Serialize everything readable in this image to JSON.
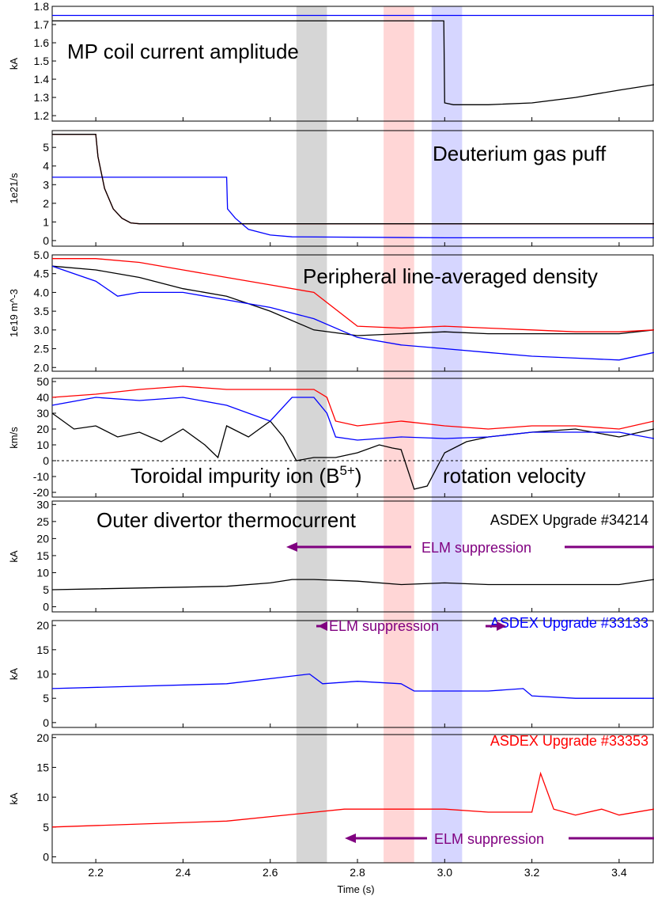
{
  "chart_data": [
    {
      "type": "line",
      "title": "MP coil current amplitude",
      "ylabel": "kA",
      "xlim": [
        2.1,
        3.48
      ],
      "ylim": [
        1.17,
        1.8
      ],
      "yticks": [
        1.2,
        1.3,
        1.4,
        1.5,
        1.6,
        1.7,
        1.8
      ],
      "series": [
        {
          "color": "#0000ff",
          "x": [
            2.1,
            2.3,
            2.5,
            2.7,
            2.9,
            3.1,
            3.3,
            3.48
          ],
          "y": [
            1.75,
            1.75,
            1.75,
            1.75,
            1.75,
            1.75,
            1.75,
            1.75
          ]
        },
        {
          "color": "#000000",
          "x": [
            2.1,
            2.5,
            2.9,
            2.995,
            2.998,
            3.0,
            3.02,
            3.1,
            3.2,
            3.3,
            3.4,
            3.48
          ],
          "y": [
            1.72,
            1.72,
            1.72,
            1.72,
            1.72,
            1.27,
            1.26,
            1.26,
            1.27,
            1.3,
            1.34,
            1.37
          ]
        }
      ]
    },
    {
      "type": "line",
      "title": "Deuterium gas puff",
      "ylabel": "1e21/s",
      "xlim": [
        2.1,
        3.48
      ],
      "ylim": [
        -0.3,
        5.9
      ],
      "yticks": [
        0,
        1,
        2,
        3,
        4,
        5
      ],
      "series": [
        {
          "color": "#0000ff",
          "x": [
            2.1,
            2.5,
            2.502,
            2.52,
            2.55,
            2.6,
            2.65,
            3.0,
            3.48
          ],
          "y": [
            3.4,
            3.4,
            1.7,
            1.2,
            0.6,
            0.3,
            0.2,
            0.15,
            0.15
          ]
        },
        {
          "color": "#ff0000",
          "x": [
            2.1,
            2.2,
            2.205,
            2.22,
            2.24,
            2.26,
            2.28,
            2.3,
            2.5,
            3.0,
            3.48
          ],
          "y": [
            5.7,
            5.7,
            4.5,
            2.8,
            1.7,
            1.2,
            0.95,
            0.9,
            0.9,
            0.9,
            0.9
          ]
        },
        {
          "color": "#000000",
          "x": [
            2.1,
            2.2,
            2.205,
            2.22,
            2.24,
            2.26,
            2.28,
            2.3,
            3.48
          ],
          "y": [
            5.7,
            5.7,
            4.5,
            2.8,
            1.7,
            1.2,
            0.95,
            0.9,
            0.9
          ]
        }
      ]
    },
    {
      "type": "line",
      "title": "Peripheral line-averaged density",
      "ylabel": "1e19 m^-3",
      "xlim": [
        2.1,
        3.48
      ],
      "ylim": [
        1.9,
        5.0
      ],
      "yticks": [
        2.0,
        2.5,
        3.0,
        3.5,
        4.0,
        4.5,
        5.0
      ],
      "series": [
        {
          "color": "#000000",
          "x": [
            2.1,
            2.2,
            2.3,
            2.4,
            2.5,
            2.6,
            2.7,
            2.8,
            2.9,
            3.0,
            3.1,
            3.2,
            3.3,
            3.4,
            3.48
          ],
          "y": [
            4.7,
            4.6,
            4.4,
            4.1,
            3.9,
            3.5,
            3.0,
            2.85,
            2.9,
            2.95,
            2.9,
            2.9,
            2.9,
            2.9,
            3.0
          ]
        },
        {
          "color": "#0000ff",
          "x": [
            2.1,
            2.2,
            2.25,
            2.3,
            2.4,
            2.5,
            2.6,
            2.7,
            2.8,
            2.9,
            3.0,
            3.1,
            3.2,
            3.3,
            3.4,
            3.48
          ],
          "y": [
            4.7,
            4.3,
            3.9,
            4.0,
            4.0,
            3.8,
            3.6,
            3.3,
            2.8,
            2.6,
            2.5,
            2.4,
            2.3,
            2.25,
            2.2,
            2.4
          ]
        },
        {
          "color": "#ff0000",
          "x": [
            2.1,
            2.2,
            2.3,
            2.4,
            2.5,
            2.6,
            2.7,
            2.8,
            2.9,
            3.0,
            3.1,
            3.2,
            3.3,
            3.4,
            3.48
          ],
          "y": [
            4.9,
            4.9,
            4.8,
            4.6,
            4.4,
            4.2,
            4.0,
            3.1,
            3.05,
            3.1,
            3.05,
            3.0,
            2.95,
            2.95,
            3.0
          ]
        }
      ]
    },
    {
      "type": "line",
      "title": "Toroidal impurity ion (B5+) rotation velocity",
      "ylabel": "km/s",
      "xlim": [
        2.1,
        3.48
      ],
      "ylim": [
        -23,
        52
      ],
      "yticks": [
        -20,
        -10,
        0,
        10,
        20,
        30,
        40,
        50
      ],
      "hline": 0,
      "series": [
        {
          "color": "#000000",
          "x": [
            2.1,
            2.15,
            2.2,
            2.25,
            2.3,
            2.35,
            2.4,
            2.45,
            2.48,
            2.5,
            2.55,
            2.6,
            2.63,
            2.66,
            2.7,
            2.75,
            2.8,
            2.85,
            2.88,
            2.9,
            2.93,
            2.96,
            3.0,
            3.05,
            3.1,
            3.2,
            3.3,
            3.4,
            3.48
          ],
          "y": [
            30,
            20,
            22,
            15,
            18,
            12,
            20,
            10,
            2,
            22,
            15,
            25,
            15,
            0,
            2,
            2,
            5,
            10,
            8,
            7,
            -18,
            -16,
            5,
            12,
            15,
            18,
            20,
            15,
            20
          ]
        },
        {
          "color": "#0000ff",
          "x": [
            2.1,
            2.2,
            2.3,
            2.4,
            2.5,
            2.6,
            2.65,
            2.7,
            2.73,
            2.75,
            2.8,
            2.9,
            3.0,
            3.1,
            3.2,
            3.3,
            3.4,
            3.48
          ],
          "y": [
            35,
            40,
            38,
            40,
            35,
            25,
            40,
            40,
            30,
            15,
            13,
            15,
            14,
            15,
            18,
            18,
            18,
            14
          ]
        },
        {
          "color": "#ff0000",
          "x": [
            2.1,
            2.2,
            2.3,
            2.4,
            2.5,
            2.6,
            2.7,
            2.73,
            2.75,
            2.8,
            2.9,
            3.0,
            3.1,
            3.2,
            3.3,
            3.4,
            3.48
          ],
          "y": [
            40,
            42,
            45,
            47,
            45,
            45,
            45,
            40,
            25,
            22,
            25,
            22,
            20,
            22,
            22,
            20,
            25
          ]
        }
      ]
    },
    {
      "type": "line",
      "title": "Outer divertor thermocurrent",
      "label": "ASDEX Upgrade #34214",
      "ylabel": "kA",
      "xlim": [
        2.1,
        3.48
      ],
      "ylim": [
        -1.5,
        31
      ],
      "yticks": [
        0,
        5,
        10,
        15,
        20,
        25,
        30
      ],
      "series": [
        {
          "color": "#000000",
          "x": [
            2.1,
            2.5,
            2.6,
            2.65,
            2.7,
            2.8,
            2.9,
            3.0,
            3.1,
            3.2,
            3.3,
            3.4,
            3.48
          ],
          "y": [
            5,
            6,
            7,
            8,
            8,
            7.5,
            6.5,
            7,
            6.5,
            6.5,
            6.5,
            6.5,
            8
          ]
        }
      ],
      "annotation": "ELM suppression"
    },
    {
      "type": "line",
      "label": "ASDEX Upgrade #33133",
      "ylabel": "kA",
      "xlim": [
        2.1,
        3.48
      ],
      "ylim": [
        -1,
        21
      ],
      "yticks": [
        0,
        5,
        10,
        15,
        20
      ],
      "series": [
        {
          "color": "#0000ff",
          "x": [
            2.1,
            2.5,
            2.69,
            2.72,
            2.8,
            2.9,
            2.93,
            3.0,
            3.1,
            3.18,
            3.2,
            3.3,
            3.4,
            3.48
          ],
          "y": [
            7,
            8,
            10,
            8,
            8.5,
            8,
            6.5,
            6.5,
            6.5,
            7,
            5.5,
            5,
            5,
            5
          ]
        }
      ],
      "annotation": "ELM suppression"
    },
    {
      "type": "line",
      "label": "ASDEX Upgrade #33353",
      "ylabel": "kA",
      "xlim": [
        2.1,
        3.48
      ],
      "ylim": [
        -1,
        20.5
      ],
      "yticks": [
        0,
        5,
        10,
        15,
        20
      ],
      "xticks": [
        2.2,
        2.4,
        2.6,
        2.8,
        3.0,
        3.2,
        3.4
      ],
      "xlabel": "Time (s)",
      "series": [
        {
          "color": "#ff0000",
          "x": [
            2.1,
            2.5,
            2.77,
            2.8,
            2.9,
            3.0,
            3.1,
            3.2,
            3.22,
            3.25,
            3.3,
            3.36,
            3.4,
            3.48
          ],
          "y": [
            5,
            6,
            8,
            8,
            8,
            8,
            7.5,
            7.5,
            14,
            8,
            7,
            8,
            7,
            8
          ]
        }
      ],
      "annotation": "ELM suppression"
    }
  ],
  "bands": [
    {
      "x0": 2.66,
      "x1": 2.73,
      "color": "#c8c8c8"
    },
    {
      "x0": 2.86,
      "x1": 2.93,
      "color": "#ffc8c8"
    },
    {
      "x0": 2.97,
      "x1": 3.04,
      "color": "#c8c8ff"
    }
  ],
  "colors": {
    "black": "#000000",
    "blue": "#0000ff",
    "red": "#ff0000",
    "purple": "#800080"
  },
  "text": {
    "p1_title": "MP coil current amplitude",
    "p2_title": "Deuterium gas puff",
    "p3_title": "Peripheral line-averaged density",
    "p4_title_left": "Toroidal impurity ion (B",
    "p4_title_sup": "5+",
    "p4_title_left_end": ")",
    "p4_title_right": "rotation velocity",
    "p5_title": "Outer divertor thermocurrent",
    "p5_label": "ASDEX Upgrade #34214",
    "p6_label": "ASDEX Upgrade #33133",
    "p7_label": "ASDEX Upgrade #33353",
    "elm": "ELM suppression",
    "xlabel": "Time (s)"
  }
}
